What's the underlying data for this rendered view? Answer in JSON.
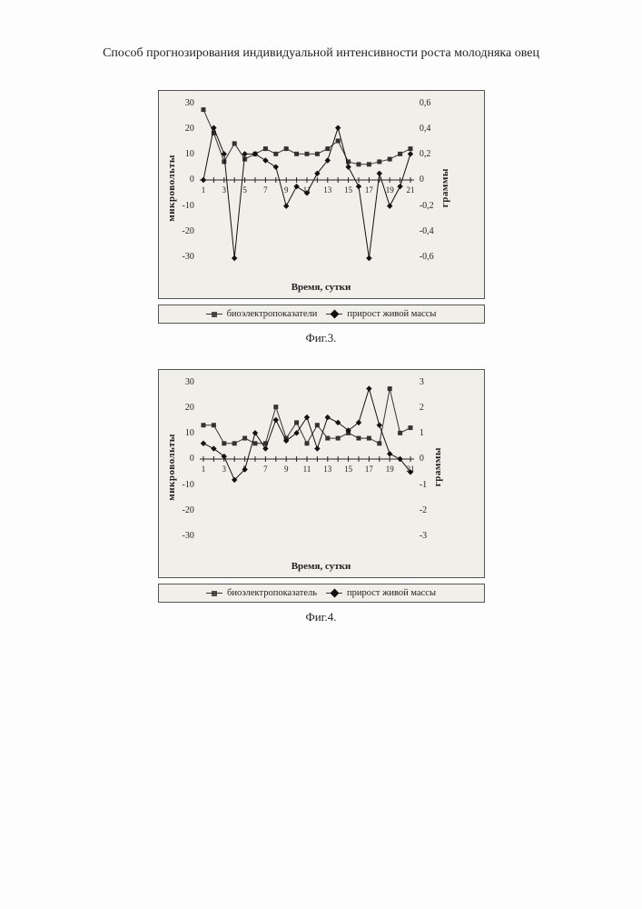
{
  "page_title": "Способ прогнозирования индивидуальной интенсивности роста молодняка овец",
  "charts": [
    {
      "caption": "Фиг.3.",
      "type": "line",
      "background_color": "#f1efe9",
      "frame_color": "#555555",
      "y_left": {
        "label": "микровольты",
        "min": -30,
        "max": 30,
        "ticks": [
          30,
          20,
          10,
          0,
          -10,
          -20,
          -30
        ]
      },
      "y_right": {
        "label": "граммы",
        "min": -0.6,
        "max": 0.6,
        "ticks": [
          "0,6",
          "0,4",
          "0,2",
          "0",
          "-0,2",
          "-0,4",
          "-0,6"
        ]
      },
      "x": {
        "label": "Время, сутки",
        "min": 1,
        "max": 21,
        "ticks": [
          1,
          3,
          5,
          7,
          9,
          11,
          13,
          15,
          17,
          19,
          21
        ]
      },
      "legend": [
        {
          "label": "биоэлектропоказатели",
          "marker": "square",
          "color": "#333333"
        },
        {
          "label": "прирост живой массы",
          "marker": "diamond",
          "color": "#111111"
        }
      ],
      "series": [
        {
          "name": "биоэлектропоказатели",
          "axis": "left",
          "marker": "square",
          "color": "#333333",
          "line_width": 1,
          "values": [
            27,
            18,
            7,
            14,
            8,
            10,
            12,
            10,
            12,
            10,
            10,
            10,
            12,
            15,
            7,
            6,
            6,
            7,
            8,
            10,
            12
          ]
        },
        {
          "name": "прирост живой массы",
          "axis": "right",
          "marker": "diamond",
          "color": "#111111",
          "line_width": 1,
          "values": [
            0,
            0.4,
            0.2,
            -0.6,
            0.2,
            0.2,
            0.15,
            0.1,
            -0.2,
            -0.05,
            -0.1,
            0.05,
            0.15,
            0.4,
            0.1,
            -0.05,
            -0.6,
            0.05,
            -0.2,
            -0.05,
            0.2
          ]
        }
      ]
    },
    {
      "caption": "Фиг.4.",
      "type": "line",
      "background_color": "#f1efe9",
      "frame_color": "#555555",
      "y_left": {
        "label": "микровольты",
        "min": -30,
        "max": 30,
        "ticks": [
          30,
          20,
          10,
          0,
          -10,
          -20,
          -30
        ]
      },
      "y_right": {
        "label": "граммы",
        "min": -3,
        "max": 3,
        "ticks": [
          "3",
          "2",
          "1",
          "0",
          "-1",
          "-2",
          "-3"
        ]
      },
      "x": {
        "label": "Время, сутки",
        "min": 1,
        "max": 21,
        "ticks": [
          1,
          3,
          5,
          7,
          9,
          11,
          13,
          15,
          17,
          19,
          21
        ]
      },
      "legend": [
        {
          "label": "биоэлектропоказатель",
          "marker": "square",
          "color": "#333333"
        },
        {
          "label": "прирост живой массы",
          "marker": "diamond",
          "color": "#111111"
        }
      ],
      "series": [
        {
          "name": "биоэлектропоказатель",
          "axis": "left",
          "marker": "square",
          "color": "#333333",
          "line_width": 1,
          "values": [
            13,
            13,
            6,
            6,
            8,
            6,
            6,
            20,
            8,
            14,
            6,
            13,
            8,
            8,
            10,
            8,
            8,
            6,
            27,
            10,
            12
          ]
        },
        {
          "name": "прирост живой массы",
          "axis": "right",
          "marker": "diamond",
          "color": "#111111",
          "line_width": 1,
          "values": [
            0.6,
            0.4,
            0.1,
            -0.8,
            -0.4,
            1.0,
            0.4,
            1.5,
            0.7,
            1.0,
            1.6,
            0.4,
            1.6,
            1.4,
            1.1,
            1.4,
            2.7,
            1.3,
            0.2,
            0.0,
            -0.5
          ]
        }
      ]
    }
  ]
}
